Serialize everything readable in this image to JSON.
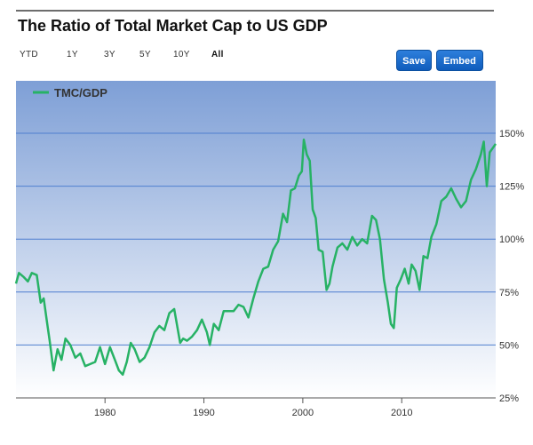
{
  "header": {
    "title": "The Ratio of Total Market Cap to US GDP"
  },
  "range_tabs": [
    {
      "label": "YTD",
      "active": false
    },
    {
      "label": "1Y",
      "active": false
    },
    {
      "label": "3Y",
      "active": false
    },
    {
      "label": "5Y",
      "active": false
    },
    {
      "label": "10Y",
      "active": false
    },
    {
      "label": "All",
      "active": true
    }
  ],
  "buttons": {
    "save": "Save",
    "embed": "Embed"
  },
  "colors": {
    "line": "#27b265",
    "grid": "#4f7fcf",
    "plot_top": "#7e9fd6",
    "plot_bottom": "#ffffff",
    "button": "#1a6dcf"
  },
  "chart_data": {
    "type": "line",
    "title": "",
    "xlabel": "",
    "ylabel": "",
    "xlim": [
      1971,
      2019.5
    ],
    "ylim": [
      25,
      150
    ],
    "x_ticks": [
      1980,
      1990,
      2000,
      2010
    ],
    "x_tick_labels": [
      "1980",
      "1990",
      "2000",
      "2010"
    ],
    "y_ticks": [
      25,
      50,
      75,
      100,
      125,
      150
    ],
    "y_tick_labels": [
      "25%",
      "50%",
      "75%",
      "100%",
      "125%",
      "150%"
    ],
    "grid": true,
    "legend": {
      "position": "top-left"
    },
    "series": [
      {
        "name": "TMC/GDP",
        "x": [
          1971,
          1971.3,
          1971.8,
          1972.2,
          1972.6,
          1973.1,
          1973.5,
          1973.8,
          1974.1,
          1974.4,
          1974.8,
          1975.2,
          1975.6,
          1976,
          1976.5,
          1977,
          1977.5,
          1978,
          1978.5,
          1979,
          1979.5,
          1980,
          1980.5,
          1981,
          1981.4,
          1981.8,
          1982.2,
          1982.6,
          1983,
          1983.5,
          1984,
          1984.5,
          1985,
          1985.5,
          1986,
          1986.5,
          1987,
          1987.6,
          1987.9,
          1988.3,
          1988.8,
          1989.3,
          1989.8,
          1990.3,
          1990.6,
          1991,
          1991.5,
          1992,
          1992.5,
          1993,
          1993.5,
          1994,
          1994.5,
          1995,
          1995.5,
          1996,
          1996.5,
          1997,
          1997.5,
          1998,
          1998.4,
          1998.8,
          1999.2,
          1999.6,
          1999.9,
          2000.1,
          2000.4,
          2000.7,
          2001,
          2001.3,
          2001.6,
          2002,
          2002.4,
          2002.7,
          2003,
          2003.5,
          2004,
          2004.5,
          2005,
          2005.5,
          2006,
          2006.5,
          2007,
          2007.4,
          2007.8,
          2008.2,
          2008.6,
          2008.9,
          2009.2,
          2009.5,
          2009.9,
          2010.3,
          2010.7,
          2011,
          2011.4,
          2011.8,
          2012.2,
          2012.6,
          2013,
          2013.5,
          2014,
          2014.5,
          2015,
          2015.5,
          2016,
          2016.5,
          2017,
          2017.5,
          2018,
          2018.3,
          2018.6,
          2018.9,
          2019.2,
          2019.5
        ],
        "values": [
          79,
          84,
          82,
          80,
          84,
          83,
          70,
          72,
          62,
          52,
          38,
          48,
          43,
          53,
          50,
          44,
          46,
          40,
          41,
          42,
          49,
          41,
          49,
          43,
          38,
          36,
          42,
          51,
          48,
          42,
          44,
          49,
          56,
          59,
          57,
          65,
          67,
          51,
          53,
          52,
          54,
          57,
          62,
          56,
          50,
          60,
          57,
          66,
          66,
          66,
          69,
          68,
          63,
          72,
          80,
          86,
          87,
          95,
          99,
          112,
          108,
          123,
          124,
          130,
          132,
          147,
          140,
          137,
          114,
          110,
          95,
          94,
          76,
          79,
          87,
          96,
          98,
          95,
          101,
          97,
          100,
          98,
          111,
          109,
          100,
          81,
          70,
          60,
          58,
          77,
          81,
          86,
          79,
          88,
          85,
          76,
          92,
          91,
          101,
          107,
          118,
          120,
          124,
          119,
          115,
          118,
          128,
          133,
          140,
          146,
          125,
          141,
          143,
          145
        ]
      }
    ]
  }
}
